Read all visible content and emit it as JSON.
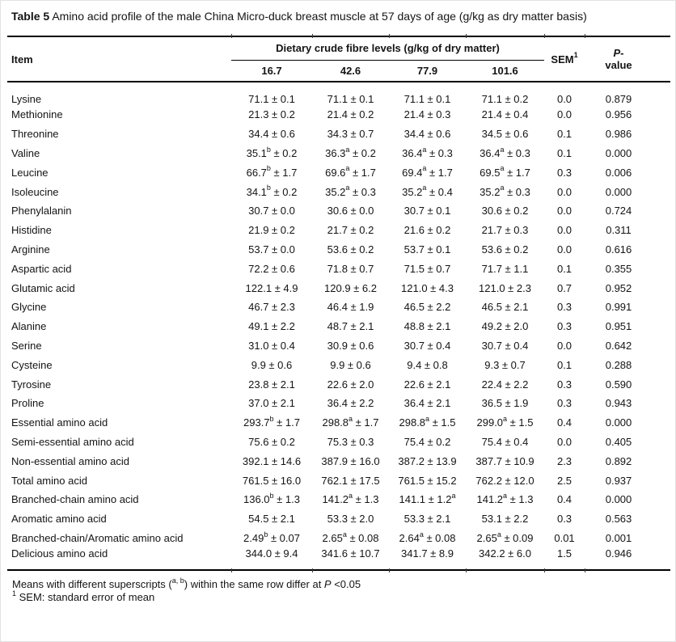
{
  "title": {
    "label": "Table 5",
    "text": " Amino acid profile of the male China Micro-duck breast muscle at 57 days of age (g/kg as dry matter basis)"
  },
  "table": {
    "header": {
      "item": "Item",
      "group": "Dietary crude fibre levels (g/kg of dry matter)",
      "levels": [
        "16.7",
        "42.6",
        "77.9",
        "101.6"
      ],
      "sem": "SEM",
      "sem_sup": "1",
      "p_head": {
        "italic": "P",
        "line1_rest": "-",
        "line2": "value"
      }
    },
    "rows": [
      {
        "item": "Lysine",
        "values": [
          "71.1 ± 0.1",
          "71.1 ± 0.1",
          "71.1 ± 0.1",
          "71.1 ± 0.2"
        ],
        "sem": "0.0",
        "p": "0.879"
      },
      {
        "item": "Methionine",
        "values": [
          "21.3 ± 0.2",
          "21.4 ± 0.2",
          "21.4 ± 0.3",
          "21.4 ± 0.4"
        ],
        "sem": "0.0",
        "p": "0.956"
      },
      {
        "item": "Threonine",
        "values": [
          "34.4 ± 0.6",
          "34.3 ± 0.7",
          "34.4 ± 0.6",
          "34.5 ± 0.6"
        ],
        "sem": "0.1",
        "p": "0.986"
      },
      {
        "item": "Valine",
        "values": [
          "35.1^b ± 0.2",
          "36.3^a ± 0.2",
          "36.4^a ± 0.3",
          "36.4^a ± 0.3"
        ],
        "sem": "0.1",
        "p": "0.000"
      },
      {
        "item": "Leucine",
        "values": [
          "66.7^b ± 1.7",
          "69.6^a ± 1.7",
          "69.4^a ± 1.7",
          "69.5^a ± 1.7"
        ],
        "sem": "0.3",
        "p": "0.006"
      },
      {
        "item": "Isoleucine",
        "values": [
          "34.1^b ± 0.2",
          "35.2^a ± 0.3",
          "35.2^a ± 0.4",
          "35.2^a ± 0.3"
        ],
        "sem": "0.0",
        "p": "0.000"
      },
      {
        "item": "Phenylalanin",
        "values": [
          "30.7 ± 0.0",
          "30.6 ± 0.0",
          "30.7 ± 0.1",
          "30.6 ± 0.2"
        ],
        "sem": "0.0",
        "p": "0.724"
      },
      {
        "item": "Histidine",
        "values": [
          "21.9 ± 0.2",
          "21.7 ± 0.2",
          "21.6 ± 0.2",
          "21.7 ± 0.3"
        ],
        "sem": "0.0",
        "p": "0.311"
      },
      {
        "item": "Arginine",
        "values": [
          "53.7 ± 0.0",
          "53.6 ± 0.2",
          "53.7 ± 0.1",
          "53.6 ± 0.2"
        ],
        "sem": "0.0",
        "p": "0.616"
      },
      {
        "item": "Aspartic acid",
        "values": [
          "72.2 ± 0.6",
          "71.8 ± 0.7",
          "71.5 ± 0.7",
          "71.7 ± 1.1"
        ],
        "sem": "0.1",
        "p": "0.355"
      },
      {
        "item": "Glutamic acid",
        "values": [
          "122.1 ± 4.9",
          "120.9 ± 6.2",
          "121.0 ± 4.3",
          "121.0 ± 2.3"
        ],
        "sem": "0.7",
        "p": "0.952"
      },
      {
        "item": "Glycine",
        "values": [
          "46.7 ± 2.3",
          "46.4 ± 1.9",
          "46.5 ± 2.2",
          "46.5 ± 2.1"
        ],
        "sem": "0.3",
        "p": "0.991"
      },
      {
        "item": "Alanine",
        "values": [
          "49.1 ± 2.2",
          "48.7 ± 2.1",
          "48.8 ± 2.1",
          "49.2 ± 2.0"
        ],
        "sem": "0.3",
        "p": "0.951"
      },
      {
        "item": "Serine",
        "values": [
          "31.0 ± 0.4",
          "30.9 ± 0.6",
          "30.7 ± 0.4",
          "30.7 ± 0.4"
        ],
        "sem": "0.0",
        "p": "0.642"
      },
      {
        "item": "Cysteine",
        "values": [
          "9.9 ± 0.6",
          "9.9 ± 0.6",
          "9.4 ± 0.8",
          "9.3 ± 0.7"
        ],
        "sem": "0.1",
        "p": "0.288"
      },
      {
        "item": "Tyrosine",
        "values": [
          "23.8 ± 2.1",
          "22.6 ± 2.0",
          "22.6 ± 2.1",
          "22.4 ± 2.2"
        ],
        "sem": "0.3",
        "p": "0.590"
      },
      {
        "item": "Proline",
        "values": [
          "37.0 ± 2.1",
          "36.4 ± 2.2",
          "36.4 ± 2.1",
          "36.5 ± 1.9"
        ],
        "sem": "0.3",
        "p": "0.943"
      },
      {
        "item": "Essential amino acid",
        "values": [
          "293.7^b ± 1.7",
          "298.8^a ± 1.7",
          "298.8^a ± 1.5",
          "299.0^a ± 1.5"
        ],
        "sem": "0.4",
        "p": "0.000"
      },
      {
        "item": "Semi-essential amino acid",
        "values": [
          "75.6 ± 0.2",
          "75.3 ± 0.3",
          "75.4 ± 0.2",
          "75.4 ± 0.4"
        ],
        "sem": "0.0",
        "p": "0.405"
      },
      {
        "item": "Non-essential amino acid",
        "values": [
          "392.1 ± 14.6",
          "387.9 ± 16.0",
          "387.2 ± 13.9",
          "387.7 ± 10.9"
        ],
        "sem": "2.3",
        "p": "0.892"
      },
      {
        "item": "Total amino acid",
        "values": [
          "761.5 ± 16.0",
          "762.1 ± 17.5",
          "761.5 ± 15.2",
          "762.2 ± 12.0"
        ],
        "sem": "2.5",
        "p": "0.937"
      },
      {
        "item": "Branched-chain amino acid",
        "values": [
          "136.0^b ± 1.3",
          "141.2^a ± 1.3",
          "141.1 ± 1.2^a",
          "141.2^a ± 1.3"
        ],
        "sem": "0.4",
        "p": "0.000"
      },
      {
        "item": "Aromatic amino acid",
        "values": [
          "54.5 ± 2.1",
          "53.3 ± 2.0",
          "53.3 ± 2.1",
          "53.1 ± 2.2"
        ],
        "sem": "0.3",
        "p": "0.563"
      },
      {
        "item": "Branched-chain/Aromatic amino acid",
        "values": [
          "2.49^b ± 0.07",
          "2.65^a ± 0.08",
          "2.64^a ± 0.08",
          "2.65^a ± 0.09"
        ],
        "sem": "0.01",
        "p": "0.001"
      },
      {
        "item": "Delicious amino acid",
        "values": [
          "344.0 ± 9.4",
          "341.6 ± 10.7",
          "341.7 ± 8.9",
          "342.2 ± 6.0"
        ],
        "sem": "1.5",
        "p": "0.946"
      }
    ]
  },
  "footnotes": {
    "significance": {
      "pre": "Means with different superscripts (",
      "sup": "a, b",
      "mid": ") within the same row differ at ",
      "p_italic": "P",
      "post": " <0.05"
    },
    "sem": {
      "sup": "1",
      "text": " SEM: standard error of mean"
    }
  }
}
